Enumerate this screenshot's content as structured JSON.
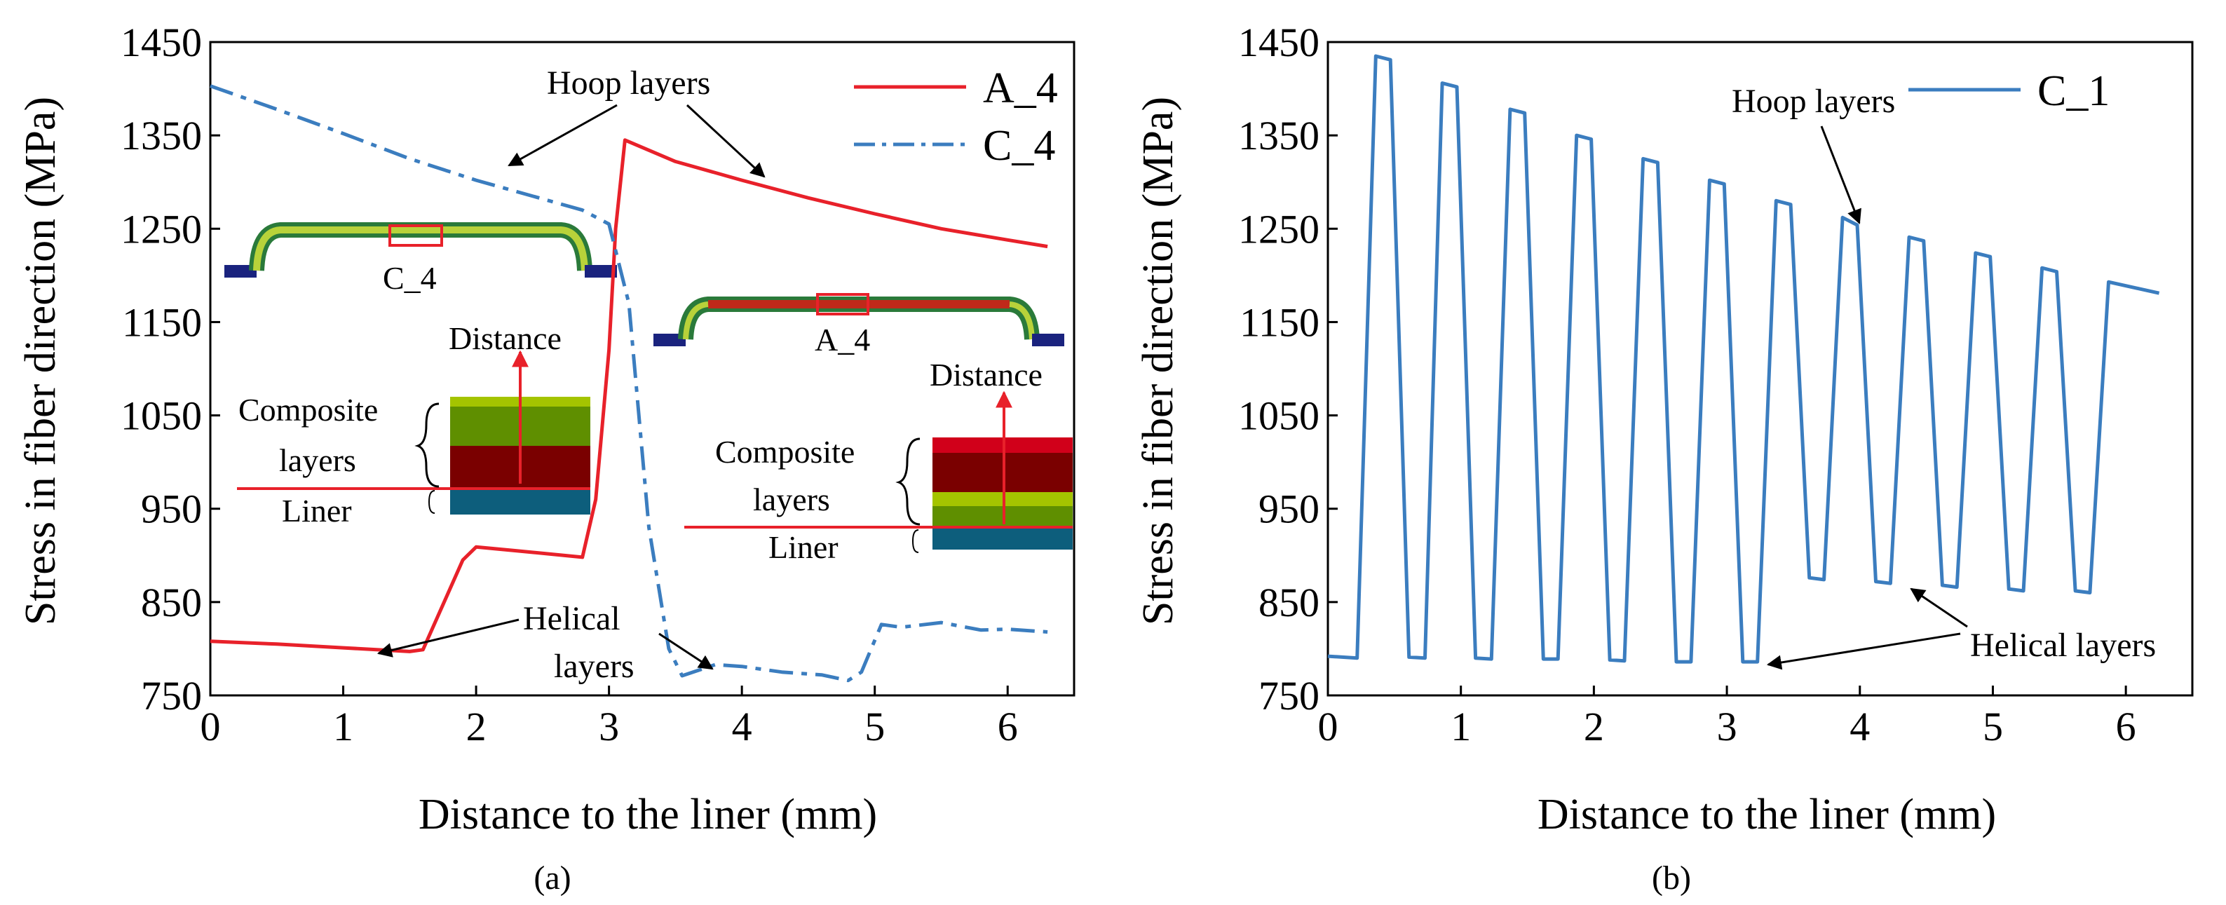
{
  "chart_data": [
    {
      "type": "line",
      "panel_label": "(a)",
      "xlabel": "Distance to the liner (mm)",
      "ylabel": "Stress in fiber direction (MPa)",
      "xlim": [
        0,
        6.5
      ],
      "ylim": [
        750,
        1450
      ],
      "xticks": [
        "0",
        "1",
        "2",
        "3",
        "4",
        "5",
        "6"
      ],
      "yticks": [
        "750",
        "850",
        "950",
        "1050",
        "1150",
        "1250",
        "1350",
        "1450"
      ],
      "series": [
        {
          "name": "A_4",
          "color": "#e8212a",
          "dash": "solid",
          "x": [
            0,
            0.5,
            1.0,
            1.5,
            1.6,
            1.9,
            2.0,
            2.3,
            2.8,
            2.9,
            3.0,
            3.05,
            3.12,
            3.5,
            4.0,
            4.5,
            5.0,
            5.5,
            6.0,
            6.3
          ],
          "y": [
            808,
            805,
            801,
            797,
            799,
            895,
            909,
            905,
            898,
            960,
            1120,
            1250,
            1345,
            1322,
            1302,
            1283,
            1266,
            1250,
            1238,
            1231
          ]
        },
        {
          "name": "C_4",
          "color": "#3b7dbf",
          "dash": "dashdot",
          "x": [
            0,
            0.5,
            1.0,
            1.5,
            2.0,
            2.5,
            2.8,
            3.0,
            3.15,
            3.3,
            3.45,
            3.55,
            3.8,
            4.0,
            4.3,
            4.5,
            4.6,
            4.8,
            4.9,
            5.05,
            5.2,
            5.5,
            5.8,
            6.0,
            6.3
          ],
          "y": [
            1403,
            1378,
            1352,
            1325,
            1302,
            1282,
            1270,
            1255,
            1170,
            930,
            800,
            771,
            783,
            781,
            775,
            773,
            772,
            766,
            775,
            826,
            823,
            828,
            820,
            821,
            818
          ]
        }
      ],
      "legend": "top-right",
      "annotations": {
        "hoop": "Hoop layers",
        "helical": [
          "Helical",
          "layers"
        ],
        "composite": [
          "Composite",
          "layers"
        ],
        "liner": "Liner",
        "distance": "Distance",
        "inset_left_label": "C_4",
        "inset_right_label": "A_4"
      }
    },
    {
      "type": "line",
      "panel_label": "(b)",
      "xlabel": "Distance to the liner (mm)",
      "ylabel": "Stress in fiber direction (MPa)",
      "xlim": [
        0,
        6.5
      ],
      "ylim": [
        750,
        1450
      ],
      "xticks": [
        "0",
        "1",
        "2",
        "3",
        "4",
        "5",
        "6"
      ],
      "yticks": [
        "750",
        "850",
        "950",
        "1050",
        "1150",
        "1250",
        "1350",
        "1450"
      ],
      "series": [
        {
          "name": "C_1",
          "color": "#3b7dbf",
          "dash": "solid",
          "x": [
            0,
            0.22,
            0.36,
            0.47,
            0.61,
            0.73,
            0.86,
            0.97,
            1.11,
            1.23,
            1.37,
            1.48,
            1.62,
            1.73,
            1.87,
            1.98,
            2.12,
            2.23,
            2.37,
            2.48,
            2.62,
            2.73,
            2.87,
            2.98,
            3.12,
            3.23,
            3.37,
            3.48,
            3.62,
            3.73,
            3.87,
            3.98,
            4.12,
            4.23,
            4.37,
            4.48,
            4.62,
            4.73,
            4.87,
            4.98,
            5.12,
            5.23,
            5.37,
            5.48,
            5.62,
            5.73,
            5.87,
            6.25
          ],
          "y": [
            792,
            790,
            1435,
            1431,
            791,
            790,
            1406,
            1402,
            790,
            789,
            1378,
            1374,
            789,
            789,
            1350,
            1346,
            788,
            787,
            1325,
            1321,
            786,
            786,
            1302,
            1298,
            786,
            786,
            1280,
            1276,
            876,
            874,
            1262,
            1254,
            872,
            870,
            1241,
            1237,
            868,
            866,
            1224,
            1220,
            864,
            862,
            1208,
            1204,
            862,
            860,
            1193,
            1181
          ]
        }
      ],
      "legend": "top-right",
      "annotations": {
        "hoop": "Hoop layers",
        "helical": "Helical layers"
      }
    }
  ]
}
